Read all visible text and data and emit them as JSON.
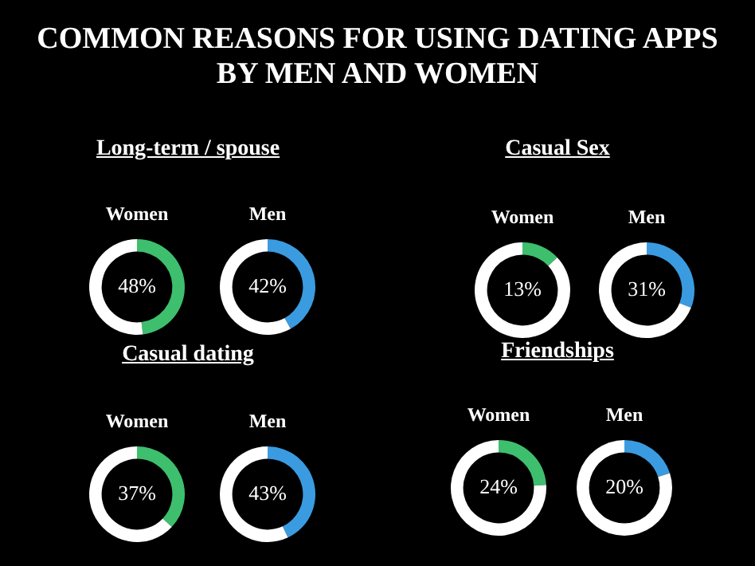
{
  "chart_data": [
    {
      "type": "donut",
      "annotations": [
        "COMMON REASONS FOR USING DATING APPS BY MEN AND WOMEN"
      ],
      "subtitle": "Long-term / spouse",
      "title": "Women",
      "categories": [
        null,
        null
      ],
      "values": [
        48,
        52
      ],
      "colors": [
        "#3dbf6e",
        "#ffffff"
      ],
      "value_labels": [
        "48%",
        null
      ]
    },
    {
      "type": "donut",
      "title": "Men",
      "categories": [
        null,
        null
      ],
      "values": [
        42,
        58
      ],
      "colors": [
        "#3b9be0",
        "#ffffff"
      ],
      "value_labels": [
        "42%",
        null
      ]
    },
    {
      "type": "donut",
      "subtitle": "Casual Sex",
      "title": "Women",
      "categories": [
        null,
        null
      ],
      "values": [
        13,
        87
      ],
      "colors": [
        "#3dbf6e",
        "#ffffff"
      ],
      "value_labels": [
        "13%",
        null
      ]
    },
    {
      "type": "donut",
      "title": "Men",
      "categories": [
        null,
        null
      ],
      "values": [
        31,
        69
      ],
      "colors": [
        "#3b9be0",
        "#ffffff"
      ],
      "value_labels": [
        "31%",
        null
      ]
    },
    {
      "type": "donut",
      "subtitle": "Casual dating",
      "title": "Women",
      "categories": [
        null,
        null
      ],
      "values": [
        37,
        63
      ],
      "colors": [
        "#3dbf6e",
        "#ffffff"
      ],
      "value_labels": [
        "37%",
        null
      ]
    },
    {
      "type": "donut",
      "title": "Men",
      "categories": [
        null,
        null
      ],
      "values": [
        43,
        57
      ],
      "colors": [
        "#3b9be0",
        "#ffffff"
      ],
      "value_labels": [
        "43%",
        null
      ]
    },
    {
      "type": "donut",
      "subtitle": "Friendships",
      "title": "Women",
      "categories": [
        null,
        null
      ],
      "values": [
        24,
        76
      ],
      "colors": [
        "#3dbf6e",
        "#ffffff"
      ],
      "value_labels": [
        "24%",
        null
      ]
    },
    {
      "type": "donut",
      "title": "Men",
      "categories": [
        null,
        null
      ],
      "values": [
        20,
        80
      ],
      "colors": [
        "#3b9be0",
        "#ffffff"
      ],
      "value_labels": [
        "20%",
        null
      ]
    }
  ]
}
